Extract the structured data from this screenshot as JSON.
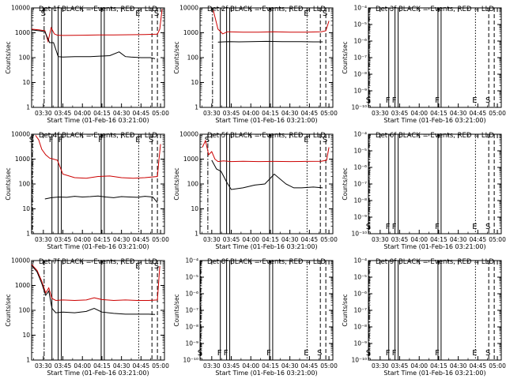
{
  "chart_data": [
    {
      "type": "line",
      "title": "Det 1f BLACK = Events, RED = LLD",
      "xlabel": "Start Time (01-Feb-16 03:21:00)",
      "ylabel": "Counts/sec",
      "log_scale": true,
      "xlim": [
        3.35,
        5.05
      ],
      "ylim": [
        1,
        10000
      ],
      "xticks": [
        "03:30",
        "03:45",
        "04:00",
        "04:15",
        "04:30",
        "04:45",
        "05:00"
      ],
      "yticks": [
        "1",
        "10",
        "100",
        "1000",
        "10000"
      ],
      "markers": [
        {
          "x": 3.51,
          "style": "dashdot",
          "label": "S"
        },
        {
          "x": 3.61,
          "style": "solid",
          "label": ""
        },
        {
          "x": 3.69,
          "style": "solid",
          "label": ""
        },
        {
          "x": 3.73,
          "style": "solid",
          "label": ""
        },
        {
          "x": 4.24,
          "style": "solid",
          "label": ""
        },
        {
          "x": 4.28,
          "style": "solid",
          "label": ""
        },
        {
          "x": 4.72,
          "style": "dotted",
          "label": "E"
        },
        {
          "x": 4.89,
          "style": "dashed",
          "label": ""
        },
        {
          "x": 4.96,
          "style": "dashed",
          "label": "S"
        }
      ],
      "series": [
        {
          "color": "#cc0000",
          "x": [
            3.35,
            3.45,
            3.52,
            3.56,
            3.6,
            3.64,
            3.68,
            3.75,
            4.0,
            4.2,
            4.4,
            4.6,
            4.8,
            4.96,
            4.99,
            5.02
          ],
          "y": [
            1400,
            1300,
            1200,
            450,
            1600,
            900,
            800,
            780,
            800,
            820,
            820,
            830,
            850,
            880,
            1400,
            9000
          ]
        },
        {
          "color": "#000000",
          "x": [
            3.35,
            3.45,
            3.52,
            3.58,
            3.63,
            3.69,
            3.75,
            3.9,
            4.1,
            4.35,
            4.47,
            4.55,
            4.62,
            4.75,
            4.87,
            4.93
          ],
          "y": [
            1300,
            1200,
            1100,
            400,
            400,
            110,
            105,
            110,
            110,
            120,
            170,
            110,
            105,
            100,
            100,
            90
          ]
        }
      ]
    },
    {
      "type": "line",
      "title": "Det 2f BLACK = Events, RED = LLD",
      "xlabel": "Start Time (01-Feb-16 03:21:00)",
      "ylabel": "Counts/sec",
      "log_scale": true,
      "xlim": [
        3.35,
        5.05
      ],
      "ylim": [
        1,
        10000
      ],
      "xticks": [
        "03:30",
        "03:45",
        "04:00",
        "04:15",
        "04:30",
        "04:45",
        "05:00"
      ],
      "yticks": [
        "1",
        "10",
        "100",
        "1000",
        "10000"
      ],
      "markers": [
        {
          "x": 3.51,
          "style": "dashdot",
          "label": ""
        },
        {
          "x": 3.61,
          "style": "solid",
          "label": ""
        },
        {
          "x": 3.69,
          "style": "solid",
          "label": ""
        },
        {
          "x": 3.73,
          "style": "solid",
          "label": ""
        },
        {
          "x": 4.24,
          "style": "solid",
          "label": ""
        },
        {
          "x": 4.28,
          "style": "solid",
          "label": ""
        },
        {
          "x": 4.72,
          "style": "dotted",
          "label": "E"
        },
        {
          "x": 4.89,
          "style": "dashed",
          "label": ""
        },
        {
          "x": 4.96,
          "style": "dashed",
          "label": "S"
        }
      ],
      "series": [
        {
          "color": "#cc0000",
          "x": [
            3.52,
            3.58,
            3.64,
            3.7,
            3.9,
            4.1,
            4.3,
            4.5,
            4.7,
            4.9,
            4.96,
            5.0
          ],
          "y": [
            8000,
            1400,
            900,
            1100,
            1050,
            1050,
            1100,
            1050,
            1050,
            1100,
            1200,
            3000
          ]
        },
        {
          "color": "#000000",
          "x": [
            3.58,
            3.65,
            3.72,
            3.85,
            4.0,
            4.2,
            4.4,
            4.6,
            4.8,
            4.92
          ],
          "y": [
            420,
            430,
            440,
            430,
            440,
            450,
            440,
            440,
            430,
            430
          ]
        }
      ]
    },
    {
      "type": "line",
      "title": "Det 3f BLACK = Events, RED = LLD",
      "xlabel": "Start Time (01-Feb-16 03:21:00)",
      "ylabel": "Counts/sec",
      "log_scale": true,
      "xlim": [
        3.35,
        5.05
      ],
      "ylim": [
        1e-10,
        0.0001
      ],
      "xticks": [
        "03:30",
        "03:45",
        "04:00",
        "04:15",
        "04:30",
        "04:45",
        "05:00"
      ],
      "yticks": [
        "10⁻¹⁰",
        "10⁻⁹",
        "10⁻⁸",
        "10⁻⁷",
        "10⁻⁶",
        "10⁻⁵",
        "10⁻⁴"
      ],
      "markers": [
        {
          "x": 3.36,
          "style": "dashdot",
          "label": "S"
        },
        {
          "x": 3.61,
          "style": "solid",
          "label": "F"
        },
        {
          "x": 3.69,
          "style": "solid",
          "label": "F"
        },
        {
          "x": 3.73,
          "style": "solid",
          "label": ""
        },
        {
          "x": 4.24,
          "style": "solid",
          "label": "F"
        },
        {
          "x": 4.28,
          "style": "solid",
          "label": ""
        },
        {
          "x": 4.72,
          "style": "dotted",
          "label": "E"
        },
        {
          "x": 4.89,
          "style": "dashed",
          "label": "S"
        },
        {
          "x": 4.96,
          "style": "dashed",
          "label": ""
        }
      ],
      "series": []
    },
    {
      "type": "line",
      "title": "Det 4f BLACK = Events, RED = LLD",
      "xlabel": "Start Time (01-Feb-16 03:21:00)",
      "ylabel": "Counts/sec",
      "log_scale": true,
      "xlim": [
        3.35,
        5.05
      ],
      "ylim": [
        1,
        10000
      ],
      "xticks": [
        "03:30",
        "03:45",
        "04:00",
        "04:15",
        "04:30",
        "04:45",
        "05:00"
      ],
      "yticks": [
        "1",
        "10",
        "100",
        "1000",
        "10000"
      ],
      "markers": [
        {
          "x": 3.36,
          "style": "dashdot",
          "label": "S"
        },
        {
          "x": 3.61,
          "style": "solid",
          "label": "F"
        },
        {
          "x": 3.69,
          "style": "solid",
          "label": ""
        },
        {
          "x": 3.73,
          "style": "solid",
          "label": "F"
        },
        {
          "x": 4.24,
          "style": "solid",
          "label": "F"
        },
        {
          "x": 4.28,
          "style": "solid",
          "label": ""
        },
        {
          "x": 4.72,
          "style": "dotted",
          "label": "E"
        },
        {
          "x": 4.89,
          "style": "dashed",
          "label": "S"
        },
        {
          "x": 4.96,
          "style": "dashed",
          "label": ""
        }
      ],
      "series": [
        {
          "color": "#cc0000",
          "x": [
            3.4,
            3.44,
            3.48,
            3.53,
            3.58,
            3.63,
            3.68,
            3.75,
            3.9,
            4.05,
            4.2,
            4.35,
            4.5,
            4.65,
            4.8,
            4.96,
            4.98,
            5.0
          ],
          "y": [
            9000,
            6000,
            2500,
            1500,
            1100,
            1000,
            900,
            250,
            180,
            170,
            200,
            210,
            180,
            170,
            180,
            200,
            1000,
            4000
          ]
        },
        {
          "color": "#000000",
          "x": [
            3.52,
            3.6,
            3.7,
            3.8,
            3.9,
            4.0,
            4.1,
            4.2,
            4.3,
            4.4,
            4.5,
            4.6,
            4.7,
            4.8,
            4.9,
            4.96
          ],
          "y": [
            25,
            28,
            30,
            29,
            32,
            30,
            31,
            33,
            30,
            28,
            31,
            30,
            29,
            32,
            30,
            18
          ]
        }
      ]
    },
    {
      "type": "line",
      "title": "Det 5f BLACK = Events, RED = LLD",
      "xlabel": "Start Time (01-Feb-16 03:21:00)",
      "ylabel": "Counts/sec",
      "log_scale": true,
      "xlim": [
        3.35,
        5.05
      ],
      "ylim": [
        1,
        10000
      ],
      "xticks": [
        "03:30",
        "03:45",
        "04:00",
        "04:15",
        "04:30",
        "04:45",
        "05:00"
      ],
      "yticks": [
        "1",
        "10",
        "100",
        "1000",
        "10000"
      ],
      "markers": [
        {
          "x": 3.45,
          "style": "dashdot",
          "label": "S"
        },
        {
          "x": 3.61,
          "style": "solid",
          "label": ""
        },
        {
          "x": 3.69,
          "style": "solid",
          "label": ""
        },
        {
          "x": 3.73,
          "style": "solid",
          "label": ""
        },
        {
          "x": 4.24,
          "style": "solid",
          "label": ""
        },
        {
          "x": 4.28,
          "style": "solid",
          "label": ""
        },
        {
          "x": 4.72,
          "style": "dotted",
          "label": "E"
        },
        {
          "x": 4.89,
          "style": "dashed",
          "label": ""
        },
        {
          "x": 4.96,
          "style": "dashed",
          "label": "S"
        }
      ],
      "series": [
        {
          "color": "#cc0000",
          "x": [
            3.38,
            3.42,
            3.46,
            3.5,
            3.54,
            3.58,
            3.65,
            3.75,
            3.9,
            4.1,
            4.3,
            4.5,
            4.7,
            4.9,
            4.97,
            5.0
          ],
          "y": [
            3000,
            5500,
            1500,
            2000,
            1000,
            800,
            850,
            800,
            820,
            800,
            810,
            800,
            810,
            820,
            900,
            3000
          ]
        },
        {
          "color": "#000000",
          "x": [
            3.5,
            3.56,
            3.62,
            3.69,
            3.75,
            3.9,
            4.05,
            4.18,
            4.3,
            4.45,
            4.55,
            4.65,
            4.8,
            4.92
          ],
          "y": [
            900,
            400,
            320,
            120,
            60,
            70,
            90,
            100,
            250,
            100,
            70,
            70,
            75,
            70
          ]
        }
      ]
    },
    {
      "type": "line",
      "title": "Det 6f BLACK = Events, RED = LLD",
      "xlabel": "Start Time (01-Feb-16 03:21:00)",
      "ylabel": "Counts/sec",
      "log_scale": true,
      "xlim": [
        3.35,
        5.05
      ],
      "ylim": [
        1e-10,
        0.0001
      ],
      "xticks": [
        "03:30",
        "03:45",
        "04:00",
        "04:15",
        "04:30",
        "04:45",
        "05:00"
      ],
      "yticks": [
        "10⁻¹⁰",
        "10⁻⁹",
        "10⁻⁸",
        "10⁻⁷",
        "10⁻⁶",
        "10⁻⁵",
        "10⁻⁴"
      ],
      "markers": [
        {
          "x": 3.36,
          "style": "dashdot",
          "label": "S"
        },
        {
          "x": 3.61,
          "style": "solid",
          "label": "F"
        },
        {
          "x": 3.69,
          "style": "solid",
          "label": "F"
        },
        {
          "x": 3.73,
          "style": "solid",
          "label": ""
        },
        {
          "x": 4.24,
          "style": "solid",
          "label": "F"
        },
        {
          "x": 4.28,
          "style": "solid",
          "label": ""
        },
        {
          "x": 4.72,
          "style": "dotted",
          "label": "E"
        },
        {
          "x": 4.89,
          "style": "dashed",
          "label": "S"
        },
        {
          "x": 4.96,
          "style": "dashed",
          "label": ""
        }
      ],
      "series": []
    },
    {
      "type": "line",
      "title": "Det 7f BLACK = Events, RED = LLD",
      "xlabel": "Start Time (01-Feb-16 03:21:00)",
      "ylabel": "Counts/sec",
      "log_scale": true,
      "xlim": [
        3.35,
        5.05
      ],
      "ylim": [
        1,
        10000
      ],
      "xticks": [
        "03:30",
        "03:45",
        "04:00",
        "04:15",
        "04:30",
        "04:45",
        "05:00"
      ],
      "yticks": [
        "1",
        "10",
        "100",
        "1000",
        "10000"
      ],
      "markers": [
        {
          "x": 3.51,
          "style": "dashdot",
          "label": ""
        },
        {
          "x": 3.61,
          "style": "solid",
          "label": ""
        },
        {
          "x": 3.69,
          "style": "solid",
          "label": ""
        },
        {
          "x": 3.73,
          "style": "solid",
          "label": ""
        },
        {
          "x": 4.24,
          "style": "solid",
          "label": ""
        },
        {
          "x": 4.28,
          "style": "solid",
          "label": ""
        },
        {
          "x": 4.72,
          "style": "dotted",
          "label": "E"
        },
        {
          "x": 4.89,
          "style": "dashed",
          "label": ""
        },
        {
          "x": 4.96,
          "style": "dashed",
          "label": "S"
        }
      ],
      "series": [
        {
          "color": "#cc0000",
          "x": [
            3.35,
            3.42,
            3.48,
            3.53,
            3.57,
            3.61,
            3.66,
            3.75,
            3.9,
            4.05,
            4.15,
            4.25,
            4.4,
            4.55,
            4.7,
            4.85,
            4.96,
            4.99
          ],
          "y": [
            7000,
            4000,
            1500,
            500,
            800,
            300,
            250,
            260,
            250,
            260,
            320,
            270,
            250,
            260,
            250,
            250,
            260,
            6000
          ]
        },
        {
          "color": "#000000",
          "x": [
            3.35,
            3.42,
            3.48,
            3.53,
            3.57,
            3.61,
            3.66,
            3.75,
            3.9,
            4.05,
            4.15,
            4.25,
            4.4,
            4.55,
            4.7,
            4.85,
            4.93
          ],
          "y": [
            6500,
            3500,
            1200,
            400,
            600,
            120,
            80,
            85,
            80,
            90,
            120,
            85,
            75,
            70,
            70,
            70,
            68
          ]
        }
      ]
    },
    {
      "type": "line",
      "title": "Det 8f BLACK = Events, RED = LLD",
      "xlabel": "Start Time (01-Feb-16 03:21:00)",
      "ylabel": "Counts/sec",
      "log_scale": true,
      "xlim": [
        3.35,
        5.05
      ],
      "ylim": [
        1e-10,
        0.0001
      ],
      "xticks": [
        "03:30",
        "03:45",
        "04:00",
        "04:15",
        "04:30",
        "04:45",
        "05:00"
      ],
      "yticks": [
        "10⁻¹⁰",
        "10⁻⁹",
        "10⁻⁸",
        "10⁻⁷",
        "10⁻⁶",
        "10⁻⁵",
        "10⁻⁴"
      ],
      "markers": [
        {
          "x": 3.36,
          "style": "dashdot",
          "label": "S"
        },
        {
          "x": 3.61,
          "style": "solid",
          "label": "F"
        },
        {
          "x": 3.69,
          "style": "solid",
          "label": "F"
        },
        {
          "x": 3.73,
          "style": "solid",
          "label": ""
        },
        {
          "x": 4.24,
          "style": "solid",
          "label": "F"
        },
        {
          "x": 4.28,
          "style": "solid",
          "label": ""
        },
        {
          "x": 4.72,
          "style": "dotted",
          "label": "E"
        },
        {
          "x": 4.89,
          "style": "dashed",
          "label": "S"
        },
        {
          "x": 4.96,
          "style": "dashed",
          "label": ""
        }
      ],
      "series": []
    },
    {
      "type": "line",
      "title": "Det 9f BLACK = Events, RED = LLD",
      "xlabel": "Start Time (01-Feb-16 03:21:00)",
      "ylabel": "Counts/sec",
      "log_scale": true,
      "xlim": [
        3.35,
        5.05
      ],
      "ylim": [
        1e-10,
        0.0001
      ],
      "xticks": [
        "03:30",
        "03:45",
        "04:00",
        "04:15",
        "04:30",
        "04:45",
        "05:00"
      ],
      "yticks": [
        "10⁻¹⁰",
        "10⁻⁹",
        "10⁻⁸",
        "10⁻⁷",
        "10⁻⁶",
        "10⁻⁵",
        "10⁻⁴"
      ],
      "markers": [
        {
          "x": 3.36,
          "style": "dashdot",
          "label": "S"
        },
        {
          "x": 3.61,
          "style": "solid",
          "label": "F"
        },
        {
          "x": 3.69,
          "style": "solid",
          "label": "F"
        },
        {
          "x": 3.73,
          "style": "solid",
          "label": ""
        },
        {
          "x": 4.24,
          "style": "solid",
          "label": "F"
        },
        {
          "x": 4.28,
          "style": "solid",
          "label": ""
        },
        {
          "x": 4.72,
          "style": "dotted",
          "label": "E"
        },
        {
          "x": 4.89,
          "style": "dashed",
          "label": "S"
        },
        {
          "x": 4.96,
          "style": "dashed",
          "label": ""
        }
      ],
      "series": []
    }
  ]
}
